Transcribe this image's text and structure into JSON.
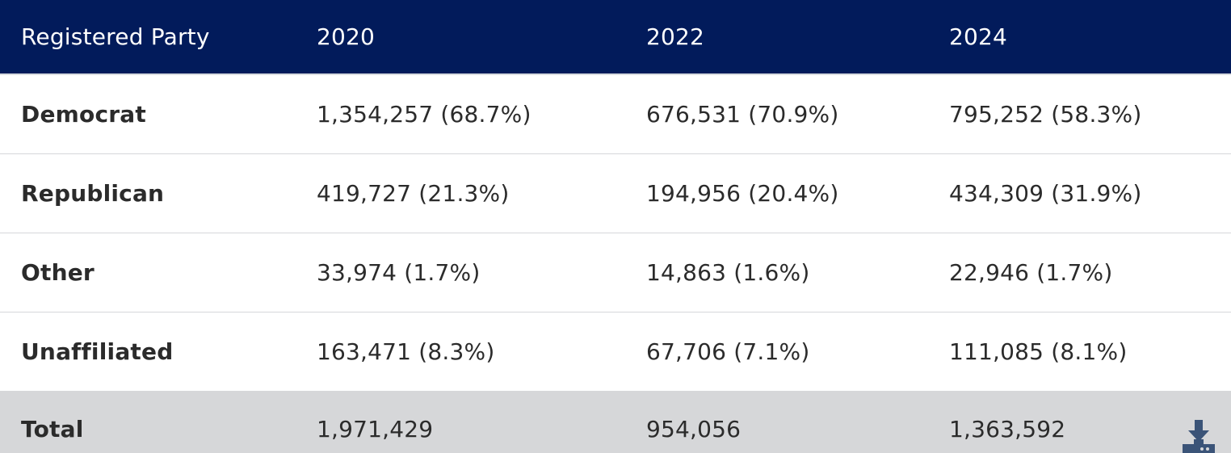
{
  "table": {
    "headers": [
      "Registered Party",
      "2020",
      "2022",
      "2024"
    ],
    "rows": [
      {
        "party": "Democrat",
        "y2020": "1,354,257 (68.7%)",
        "y2022": "676,531 (70.9%)",
        "y2024": "795,252 (58.3%)"
      },
      {
        "party": "Republican",
        "y2020": "419,727 (21.3%)",
        "y2022": "194,956 (20.4%)",
        "y2024": "434,309 (31.9%)"
      },
      {
        "party": "Other",
        "y2020": "33,974 (1.7%)",
        "y2022": "14,863 (1.6%)",
        "y2024": "22,946 (1.7%)"
      },
      {
        "party": "Unaffiliated",
        "y2020": "163,471 (8.3%)",
        "y2022": "67,706 (7.1%)",
        "y2024": "111,085 (8.1%)"
      }
    ],
    "total": {
      "party": "Total",
      "y2020": "1,971,429",
      "y2022": "954,056",
      "y2024": "1,363,592"
    }
  },
  "colors": {
    "header_bg": "#021b5b",
    "total_bg": "#d6d7d9",
    "download_icon": "#3b5478"
  },
  "icons": {
    "download": "download-icon"
  }
}
